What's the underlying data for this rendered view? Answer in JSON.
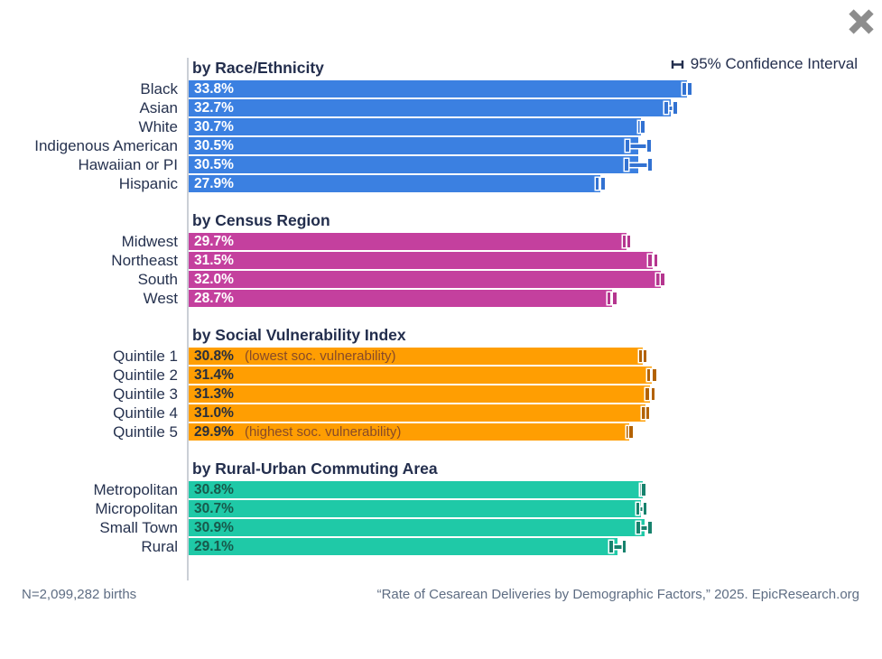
{
  "legend": {
    "label": "95% Confidence Interval"
  },
  "footer": {
    "sample_size": "N=2,099,282 births",
    "citation": "“Rate of Cesarean Deliveries by Demographic Factors,” 2025. EpicResearch.org"
  },
  "colors": {
    "race": "#3b80e1",
    "race_error": "#3272d2",
    "region": "#c4409e",
    "region_error": "#b5368f",
    "svi": "#ff9e02",
    "svi_error": "#b36200",
    "ruca": "#1fc9a7",
    "ruca_error": "#17826d",
    "heading_text": "#232e4d",
    "label_text": "#26324f",
    "axis_line": "#cbcfd6",
    "footer_text": "#5e6d83",
    "close_icon": "#8d8d8d"
  },
  "chart_data": {
    "type": "bar",
    "orientation": "horizontal",
    "title": "Rate of Cesarean Deliveries by Demographic Factors",
    "unit": "%",
    "xlim": [
      0,
      34
    ],
    "legend": "95% Confidence Interval",
    "error_bars": true,
    "sections": [
      {
        "title": "by Race/Ethnicity",
        "color": "#3b80e1",
        "error_color": "#3272d2",
        "value_text_color": "#ffffff",
        "rows": [
          {
            "label": "Black",
            "value": 33.8,
            "display": "33.8%",
            "ci": 0.3
          },
          {
            "label": "Asian",
            "value": 32.7,
            "display": "32.7%",
            "ci": 0.4
          },
          {
            "label": "White",
            "value": 30.7,
            "display": "30.7%",
            "ci": 0.2
          },
          {
            "label": "Indigenous American",
            "value": 30.5,
            "display": "30.5%",
            "ci": 0.85
          },
          {
            "label": "Hawaiian or PI",
            "value": 30.5,
            "display": "30.5%",
            "ci": 0.9
          },
          {
            "label": "Hispanic",
            "value": 27.9,
            "display": "27.9%",
            "ci": 0.3
          }
        ]
      },
      {
        "title": "by Census Region",
        "color": "#c4409e",
        "error_color": "#b5368f",
        "value_text_color": "#ffffff",
        "rows": [
          {
            "label": "Midwest",
            "value": 29.7,
            "display": "29.7%",
            "ci": 0.25
          },
          {
            "label": "Northeast",
            "value": 31.5,
            "display": "31.5%",
            "ci": 0.3
          },
          {
            "label": "South",
            "value": 32.0,
            "display": "32.0%",
            "ci": 0.25
          },
          {
            "label": "West",
            "value": 28.7,
            "display": "28.7%",
            "ci": 0.3
          }
        ]
      },
      {
        "title": "by Social Vulnerability Index",
        "color": "#ff9e02",
        "error_color": "#b36200",
        "value_text_color": "#272e3d",
        "annotation_color": "#874a28",
        "rows": [
          {
            "label": "Quintile 1",
            "value": 30.8,
            "display": "30.8%",
            "ci": 0.25,
            "annotation": "(lowest soc. vulnerability)"
          },
          {
            "label": "Quintile 2",
            "value": 31.4,
            "display": "31.4%",
            "ci": 0.3
          },
          {
            "label": "Quintile 3",
            "value": 31.3,
            "display": "31.3%",
            "ci": 0.3
          },
          {
            "label": "Quintile 4",
            "value": 31.0,
            "display": "31.0%",
            "ci": 0.25
          },
          {
            "label": "Quintile 5",
            "value": 29.9,
            "display": "29.9%",
            "ci": 0.2,
            "annotation": "(highest soc. vulnerability)"
          }
        ]
      },
      {
        "title": "by Rural-Urban Commuting Area",
        "color": "#1fc9a7",
        "error_color": "#17826d",
        "value_text_color": "#175a4c",
        "rows": [
          {
            "label": "Metropolitan",
            "value": 30.8,
            "display": "30.8%",
            "ci": 0.12
          },
          {
            "label": "Micropolitan",
            "value": 30.7,
            "display": "30.7%",
            "ci": 0.35
          },
          {
            "label": "Small Town",
            "value": 30.9,
            "display": "30.9%",
            "ci": 0.5
          },
          {
            "label": "Rural",
            "value": 29.1,
            "display": "29.1%",
            "ci": 0.55
          }
        ]
      }
    ]
  }
}
